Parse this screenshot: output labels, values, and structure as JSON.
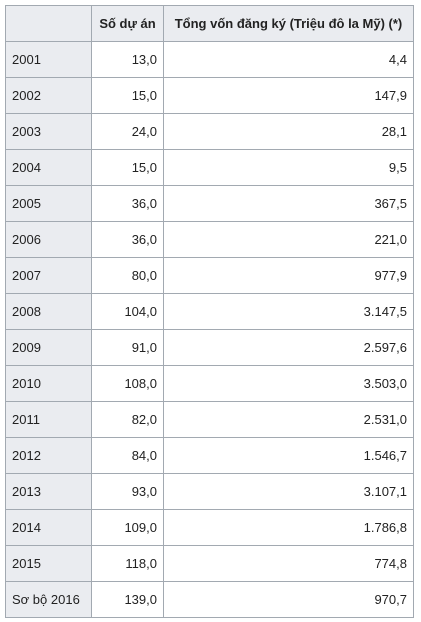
{
  "table": {
    "headers": {
      "year": "",
      "projects": "Số dự án",
      "capital": "Tổng vốn đăng ký (Triệu đô la Mỹ) (*)"
    },
    "rows": [
      {
        "year": "2001",
        "projects": "13,0",
        "capital": "4,4"
      },
      {
        "year": "2002",
        "projects": "15,0",
        "capital": "147,9"
      },
      {
        "year": "2003",
        "projects": "24,0",
        "capital": "28,1"
      },
      {
        "year": "2004",
        "projects": "15,0",
        "capital": "9,5"
      },
      {
        "year": "2005",
        "projects": "36,0",
        "capital": "367,5"
      },
      {
        "year": "2006",
        "projects": "36,0",
        "capital": "221,0"
      },
      {
        "year": "2007",
        "projects": "80,0",
        "capital": "977,9"
      },
      {
        "year": "2008",
        "projects": "104,0",
        "capital": "3.147,5"
      },
      {
        "year": "2009",
        "projects": "91,0",
        "capital": "2.597,6"
      },
      {
        "year": "2010",
        "projects": "108,0",
        "capital": "3.503,0"
      },
      {
        "year": "2011",
        "projects": "82,0",
        "capital": "2.531,0"
      },
      {
        "year": "2012",
        "projects": "84,0",
        "capital": "1.546,7"
      },
      {
        "year": "2013",
        "projects": "93,0",
        "capital": "3.107,1"
      },
      {
        "year": "2014",
        "projects": "109,0",
        "capital": "1.786,8"
      },
      {
        "year": "2015",
        "projects": "118,0",
        "capital": "774,8"
      },
      {
        "year": "Sơ bộ 2016",
        "projects": "139,0",
        "capital": "970,7"
      }
    ]
  }
}
